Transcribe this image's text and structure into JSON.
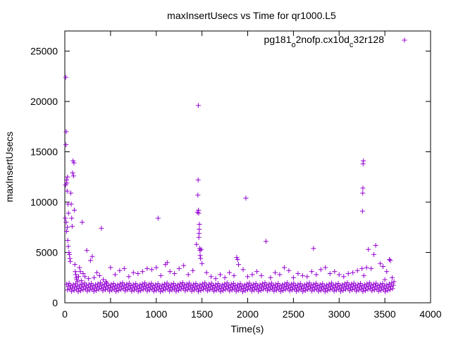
{
  "chart_data": {
    "type": "scatter",
    "title": "maxInsertUsecs vs Time for qr1000.L5",
    "xlabel": "Time(s)",
    "ylabel": "maxInsertUsecs",
    "xlim": [
      0,
      4000
    ],
    "ylim": [
      0,
      27000
    ],
    "xticks": [
      0,
      500,
      1000,
      1500,
      2000,
      2500,
      3000,
      3500,
      4000
    ],
    "yticks": [
      0,
      5000,
      10000,
      15000,
      20000,
      25000
    ],
    "legend_position": "top-right",
    "grid": false,
    "series": [
      {
        "name_parts": {
          "base": "pg181",
          "sub1": "o",
          "mid": "2nofp.cx10d",
          "sub2": "c",
          "end": "32r128"
        },
        "color": "#9400d3",
        "marker": "plus",
        "points": [
          [
            10,
            22400
          ],
          [
            15,
            17000
          ],
          [
            12,
            15700
          ],
          [
            18,
            12200
          ],
          [
            8,
            11700
          ],
          [
            22,
            11900
          ],
          [
            25,
            11100
          ],
          [
            30,
            12500
          ],
          [
            35,
            9800
          ],
          [
            40,
            8900
          ],
          [
            5,
            8400
          ],
          [
            15,
            8000
          ],
          [
            20,
            7100
          ],
          [
            28,
            7500
          ],
          [
            32,
            6200
          ],
          [
            38,
            5600
          ],
          [
            45,
            5000
          ],
          [
            50,
            4800
          ],
          [
            55,
            4400
          ],
          [
            60,
            4100
          ],
          [
            65,
            10900
          ],
          [
            70,
            9800
          ],
          [
            75,
            8400
          ],
          [
            80,
            7600
          ],
          [
            85,
            12900
          ],
          [
            90,
            14100
          ],
          [
            95,
            12600
          ],
          [
            100,
            13900
          ],
          [
            105,
            9200
          ],
          [
            110,
            3800
          ],
          [
            115,
            3100
          ],
          [
            120,
            2800
          ],
          [
            125,
            2500
          ],
          [
            130,
            2300
          ],
          [
            140,
            2100
          ],
          [
            150,
            2600
          ],
          [
            160,
            3500
          ],
          [
            170,
            3100
          ],
          [
            180,
            2200
          ],
          [
            190,
            8000
          ],
          [
            200,
            2900
          ],
          [
            220,
            2600
          ],
          [
            240,
            5200
          ],
          [
            260,
            2400
          ],
          [
            280,
            4200
          ],
          [
            300,
            4600
          ],
          [
            320,
            2500
          ],
          [
            350,
            3000
          ],
          [
            380,
            2700
          ],
          [
            400,
            7400
          ],
          [
            420,
            2300
          ],
          [
            450,
            2100
          ],
          [
            500,
            3500
          ],
          [
            550,
            2800
          ],
          [
            600,
            3200
          ],
          [
            650,
            3400
          ],
          [
            700,
            2600
          ],
          [
            750,
            3000
          ],
          [
            800,
            2900
          ],
          [
            850,
            3100
          ],
          [
            900,
            3400
          ],
          [
            950,
            3300
          ],
          [
            1000,
            3500
          ],
          [
            1020,
            8400
          ],
          [
            1050,
            2700
          ],
          [
            1100,
            3800
          ],
          [
            1120,
            4000
          ],
          [
            1150,
            3100
          ],
          [
            1200,
            2900
          ],
          [
            1250,
            3400
          ],
          [
            1300,
            3700
          ],
          [
            1350,
            2800
          ],
          [
            1400,
            3200
          ],
          [
            1440,
            5800
          ],
          [
            1450,
            9000
          ],
          [
            1455,
            10700
          ],
          [
            1458,
            12200
          ],
          [
            1460,
            19600
          ],
          [
            1462,
            9200
          ],
          [
            1464,
            8900
          ],
          [
            1466,
            6500
          ],
          [
            1468,
            6900
          ],
          [
            1470,
            7300
          ],
          [
            1472,
            7800
          ],
          [
            1475,
            5400
          ],
          [
            1478,
            5200
          ],
          [
            1480,
            4700
          ],
          [
            1485,
            4400
          ],
          [
            1490,
            5300
          ],
          [
            1500,
            3900
          ],
          [
            1550,
            3000
          ],
          [
            1600,
            2600
          ],
          [
            1650,
            2400
          ],
          [
            1700,
            2800
          ],
          [
            1750,
            2500
          ],
          [
            1800,
            3000
          ],
          [
            1850,
            2700
          ],
          [
            1880,
            4500
          ],
          [
            1890,
            4300
          ],
          [
            1900,
            3800
          ],
          [
            1950,
            3300
          ],
          [
            1980,
            10400
          ],
          [
            2000,
            2600
          ],
          [
            2050,
            2800
          ],
          [
            2100,
            3100
          ],
          [
            2150,
            2700
          ],
          [
            2200,
            6100
          ],
          [
            2250,
            2500
          ],
          [
            2300,
            3000
          ],
          [
            2350,
            2800
          ],
          [
            2400,
            3500
          ],
          [
            2450,
            3200
          ],
          [
            2500,
            2500
          ],
          [
            2550,
            2900
          ],
          [
            2600,
            2700
          ],
          [
            2650,
            2600
          ],
          [
            2700,
            3100
          ],
          [
            2720,
            5400
          ],
          [
            2750,
            2800
          ],
          [
            2800,
            3300
          ],
          [
            2850,
            3500
          ],
          [
            2900,
            2900
          ],
          [
            2950,
            3100
          ],
          [
            3000,
            2800
          ],
          [
            3050,
            2600
          ],
          [
            3100,
            2900
          ],
          [
            3150,
            3000
          ],
          [
            3200,
            3200
          ],
          [
            3250,
            3400
          ],
          [
            3255,
            9100
          ],
          [
            3258,
            10900
          ],
          [
            3260,
            11400
          ],
          [
            3262,
            13800
          ],
          [
            3265,
            14100
          ],
          [
            3270,
            2700
          ],
          [
            3300,
            3500
          ],
          [
            3320,
            5300
          ],
          [
            3350,
            3400
          ],
          [
            3380,
            4800
          ],
          [
            3400,
            5700
          ],
          [
            3450,
            3900
          ],
          [
            3480,
            3600
          ],
          [
            3500,
            2300
          ],
          [
            3520,
            3100
          ],
          [
            3550,
            4300
          ],
          [
            3560,
            4200
          ],
          [
            3580,
            2500
          ],
          [
            3600,
            2100
          ]
        ]
      }
    ]
  }
}
